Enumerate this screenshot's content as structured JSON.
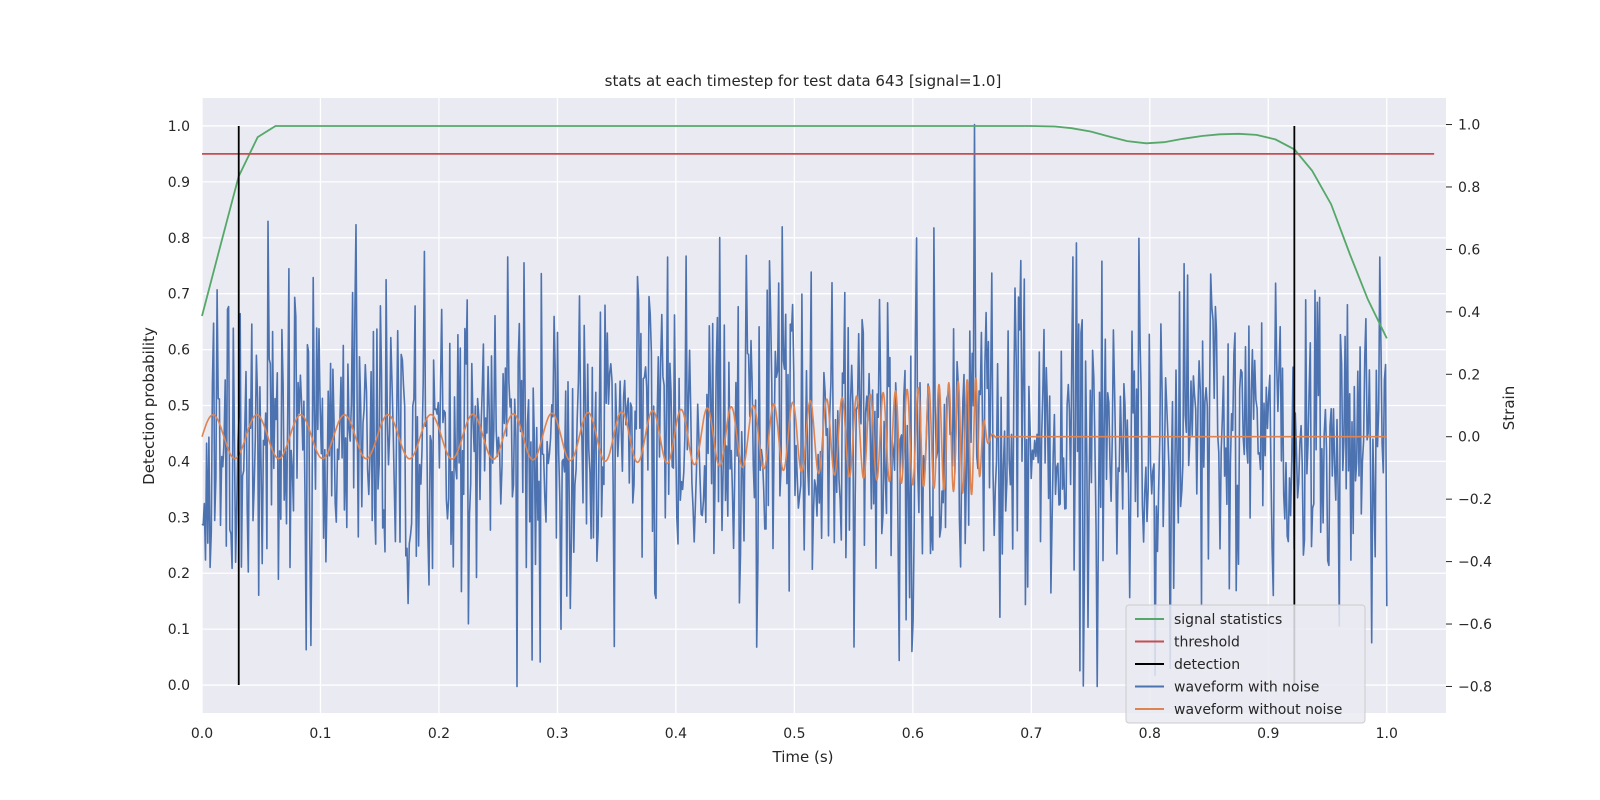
{
  "chart_data": {
    "type": "line",
    "title": "stats at each timestep for test data 643 [signal=1.0]",
    "xlabel": "Time (s)",
    "ylabel": "Detection probability",
    "y2label": "Strain",
    "xlim": [
      0.0,
      1.05
    ],
    "ylim": [
      -0.05,
      1.05
    ],
    "y2lim": [
      -0.885,
      1.085
    ],
    "xticks": [
      "0.0",
      "0.1",
      "0.2",
      "0.3",
      "0.4",
      "0.5",
      "0.6",
      "0.7",
      "0.8",
      "0.9",
      "1.0"
    ],
    "yticks": [
      "0.0",
      "0.1",
      "0.2",
      "0.3",
      "0.4",
      "0.5",
      "0.6",
      "0.7",
      "0.8",
      "0.9",
      "1.0"
    ],
    "y2ticks": [
      "−0.8",
      "−0.6",
      "−0.4",
      "−0.2",
      "0.0",
      "0.2",
      "0.4",
      "0.6",
      "0.8",
      "1.0"
    ],
    "grid": true,
    "legend_position": "lower-right",
    "colors": {
      "signal_statistics": "#55a868",
      "threshold": "#c44e52",
      "detection": "#000000",
      "waveform_with_noise": "#4c72b0",
      "waveform_without_noise": "#dd8452",
      "background": "#eaeaf2",
      "grid": "#ffffff"
    },
    "legend": [
      "signal statistics",
      "threshold",
      "detection",
      "waveform with noise",
      "waveform without noise"
    ],
    "series": [
      {
        "name": "signal statistics",
        "axis": "left",
        "x": [
          0.0,
          0.016,
          0.031,
          0.047,
          0.062,
          0.078,
          0.1,
          0.2,
          0.3,
          0.4,
          0.5,
          0.6,
          0.68,
          0.7,
          0.72,
          0.734,
          0.75,
          0.766,
          0.781,
          0.797,
          0.812,
          0.828,
          0.844,
          0.859,
          0.875,
          0.89,
          0.906,
          0.922,
          0.937,
          0.953,
          0.969,
          0.984,
          1.0
        ],
        "y": [
          0.66,
          0.79,
          0.91,
          0.98,
          1.0,
          1.0,
          1.0,
          1.0,
          1.0,
          1.0,
          1.0,
          1.0,
          1.0,
          1.0,
          0.999,
          0.996,
          0.99,
          0.981,
          0.973,
          0.969,
          0.971,
          0.977,
          0.982,
          0.985,
          0.986,
          0.984,
          0.976,
          0.958,
          0.92,
          0.86,
          0.77,
          0.69,
          0.62
        ]
      },
      {
        "name": "threshold",
        "axis": "left",
        "x": [
          0.0,
          1.04
        ],
        "y": [
          0.95,
          0.95
        ]
      },
      {
        "name": "detection",
        "axis": "left",
        "vlines": [
          0.031,
          0.922
        ],
        "ymin": 0.0,
        "ymax": 1.0
      },
      {
        "name": "waveform with noise",
        "axis": "right",
        "x_range": [
          0.0,
          1.0
        ],
        "points": 1024,
        "amplitude_std": 0.27,
        "y_range": [
          -0.8,
          1.0
        ]
      },
      {
        "name": "waveform without noise",
        "axis": "right",
        "chirp_start_freq_hz": 27,
        "chirp_end_freq_hz": 140,
        "merger_time_s": 0.655,
        "ringdown_end_s": 0.67,
        "amplitude_start": 0.07,
        "amplitude_peak": 0.19,
        "x_range": [
          0.0,
          1.0
        ]
      }
    ]
  }
}
